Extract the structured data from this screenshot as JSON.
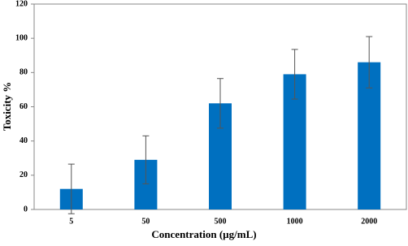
{
  "chart_data": {
    "type": "bar",
    "x_label": "Concentration  (µg/mL)",
    "y_label": "Toxicity %",
    "categories": [
      "5",
      "50",
      "500",
      "1000",
      "2000"
    ],
    "values": [
      12,
      29,
      62,
      79,
      86
    ],
    "errors": [
      14.5,
      14,
      14.5,
      14.5,
      15
    ],
    "color": "#0070c0",
    "ylim": [
      0,
      120
    ],
    "yticks": [
      0,
      20,
      40,
      60,
      80,
      100,
      120
    ],
    "grid": false
  }
}
